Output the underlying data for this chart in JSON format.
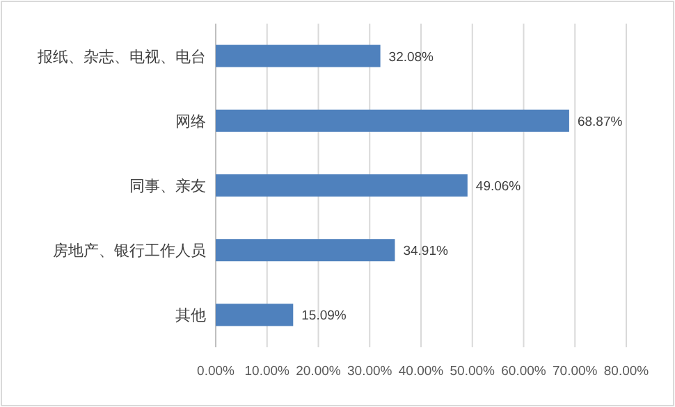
{
  "chart_data": {
    "type": "bar",
    "orientation": "horizontal",
    "categories": [
      "报纸、杂志、电视、电台",
      "网络",
      "同事、亲友",
      "房地产、银行工作人员",
      "其他"
    ],
    "values": [
      32.08,
      68.87,
      49.06,
      34.91,
      15.09
    ],
    "value_labels": [
      "32.08%",
      "68.87%",
      "49.06%",
      "34.91%",
      "15.09%"
    ],
    "color": "#4f81bd",
    "xlim": [
      0,
      80
    ],
    "xticks": [
      {
        "value": 0,
        "label": "0.00%"
      },
      {
        "value": 10,
        "label": "10.00%"
      },
      {
        "value": 20,
        "label": "20.00%"
      },
      {
        "value": 30,
        "label": "30.00%"
      },
      {
        "value": 40,
        "label": "40.00%"
      },
      {
        "value": 50,
        "label": "50.00%"
      },
      {
        "value": 60,
        "label": "60.00%"
      },
      {
        "value": 70,
        "label": "70.00%"
      },
      {
        "value": 80,
        "label": "80.00%"
      }
    ],
    "grid": "x"
  }
}
